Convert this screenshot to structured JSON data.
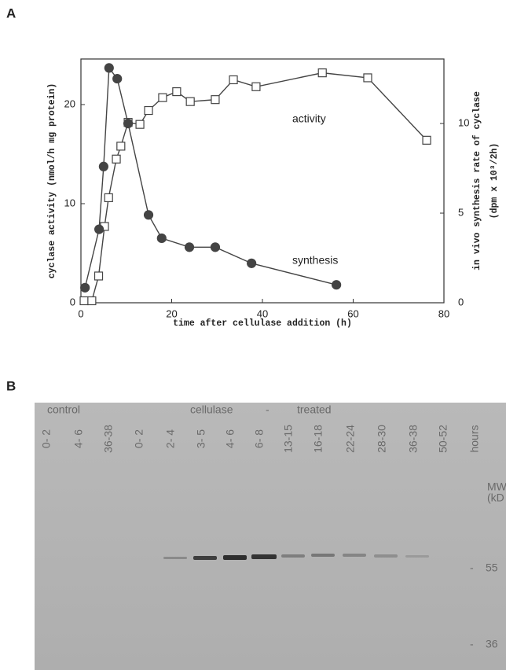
{
  "chart_data": {
    "type": "line",
    "panel_label": "A",
    "x_label": "time after cellulase addition (h)",
    "y_label": "cyclase activity (nmol/h mg protein)",
    "y2_label": [
      "in vivo synthesis rate of cyclase",
      "(dpm x 10³/2h)"
    ],
    "xlim": [
      0,
      80
    ],
    "xticks": [
      0,
      20,
      40,
      60,
      80
    ],
    "ylim": [
      0,
      24.6
    ],
    "yticks": [
      0,
      10,
      20
    ],
    "y2lim": [
      0,
      13.6
    ],
    "y2ticks": [
      0,
      5,
      10
    ],
    "series": [
      {
        "name": "activity",
        "color": "#444444",
        "marker": "open-square",
        "x": [
          0.7,
          2.4,
          3.9,
          5.2,
          6.1,
          7.8,
          8.8,
          10.4,
          13,
          14.9,
          18,
          21.1,
          24.1,
          29.6,
          33.6,
          38.6,
          53.2,
          63.2,
          76.2
        ],
        "values": [
          0.2,
          0.2,
          2.7,
          7.7,
          10.6,
          14.5,
          15.8,
          18.2,
          18,
          19.4,
          20.7,
          21.3,
          20.3,
          20.5,
          22.5,
          21.8,
          23.2,
          22.7,
          16.4
        ]
      },
      {
        "name": "synthesis",
        "color": "#444444",
        "marker": "filled-circle",
        "axis": "y2",
        "x": [
          0.9,
          4,
          5,
          6.2,
          8,
          10.4,
          14.9,
          17.8,
          23.9,
          29.6,
          37.6,
          56.3
        ],
        "values": [
          0.84,
          4.1,
          7.6,
          13.1,
          12.5,
          10.0,
          4.9,
          3.6,
          3.1,
          3.1,
          2.2,
          1.0
        ]
      }
    ]
  },
  "gel": {
    "panel_label": "B",
    "groups": [
      "control",
      "cellulase",
      "-",
      "treated"
    ],
    "lanes": [
      "0- 2",
      "4- 6",
      "36-38",
      "0- 2",
      "2- 4",
      "3- 5",
      "4- 6",
      "6- 8",
      "13-15",
      "16-18",
      "22-24",
      "28-30",
      "36-38",
      "50-52"
    ],
    "lane_unit": "hours",
    "mw_label": [
      "MW",
      "(kD"
    ],
    "markers": [
      {
        "dash": "-",
        "label": "55"
      },
      {
        "dash": "-",
        "label": "36"
      }
    ]
  }
}
